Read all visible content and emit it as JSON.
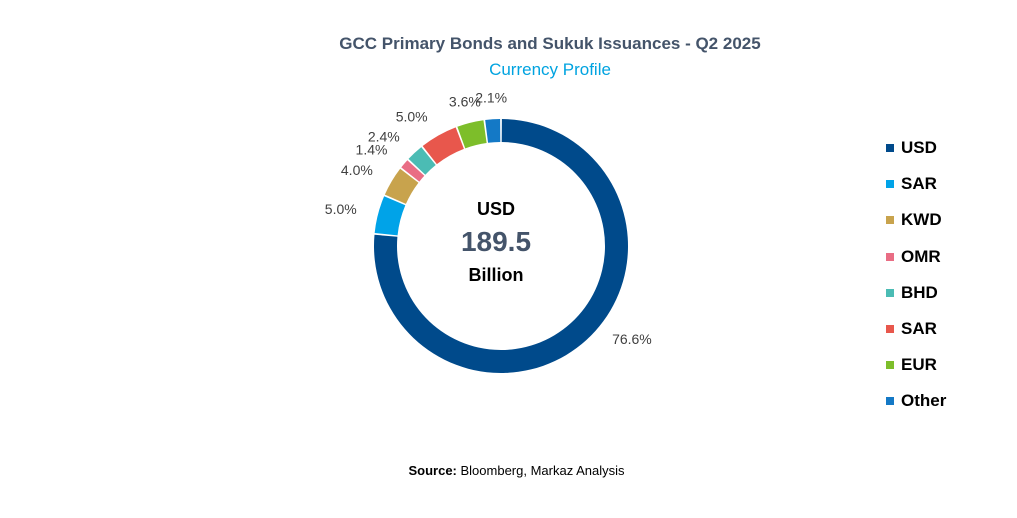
{
  "chart_data": {
    "type": "pie",
    "title": "GCC Primary Bonds and Sukuk Issuances - Q2 2025",
    "subtitle": "Currency Profile",
    "center": {
      "line1": "USD",
      "value": "189.5",
      "line3": "Billion"
    },
    "slices": [
      {
        "name": "USD",
        "value": 76.6,
        "label": "76.6%",
        "color": "#004a8b"
      },
      {
        "name": "SAR",
        "value": 5.0,
        "label": "5.0%",
        "color": "#00a3e8"
      },
      {
        "name": "KWD",
        "value": 4.0,
        "label": "4.0%",
        "color": "#c8a34d"
      },
      {
        "name": "OMR",
        "value": 1.4,
        "label": "1.4%",
        "color": "#e96d84"
      },
      {
        "name": "BHD",
        "value": 2.4,
        "label": "2.4%",
        "color": "#4bbcb4"
      },
      {
        "name": "SAR",
        "value": 5.0,
        "label": "5.0%",
        "color": "#e8574c"
      },
      {
        "name": "EUR",
        "value": 3.6,
        "label": "3.6%",
        "color": "#7dbe2a"
      },
      {
        "name": "Other",
        "value": 2.1,
        "label": "2.1%",
        "color": "#1479c6"
      }
    ],
    "legend_position": "right"
  },
  "source": {
    "label": "Source:",
    "text": " Bloomberg, Markaz Analysis"
  }
}
